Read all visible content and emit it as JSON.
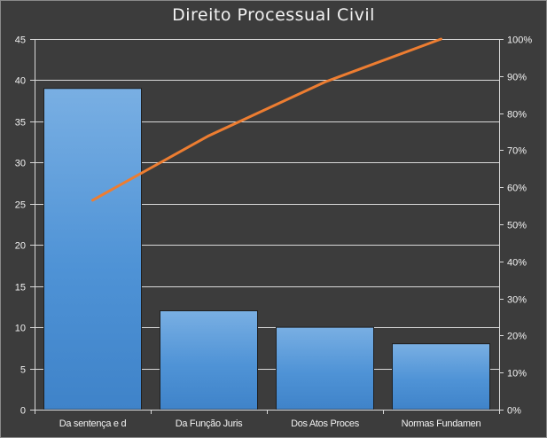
{
  "chart_data": {
    "type": "bar",
    "title": "Direito  Processual  Civil",
    "categories": [
      "Da sentença e d",
      "Da Função Juris",
      "Dos Atos Proces",
      "Normas Fundamen"
    ],
    "series": [
      {
        "type": "bar",
        "values": [
          39,
          12,
          10,
          8
        ]
      },
      {
        "type": "line",
        "axis": "right",
        "values": [
          56.5,
          73.9,
          88.4,
          100
        ]
      }
    ],
    "left_axis": {
      "ylim": [
        0,
        45
      ],
      "ticks": [
        "0",
        "5",
        "10",
        "15",
        "20",
        "25",
        "30",
        "35",
        "40",
        "45"
      ]
    },
    "right_axis": {
      "ylim": [
        0,
        100
      ],
      "ticks": [
        "0%",
        "10%",
        "20%",
        "30%",
        "40%",
        "50%",
        "60%",
        "70%",
        "80%",
        "90%",
        "100%"
      ]
    },
    "grid": true,
    "legend": "none",
    "colors": {
      "background": "#3c3c3c",
      "bar": "#4f93d6",
      "bar_light": "#79afe3",
      "bar_dark": "#3f83c9",
      "line": "#ed7d31",
      "grid": "#d9d9d9",
      "text": "#f2f2f2"
    }
  }
}
